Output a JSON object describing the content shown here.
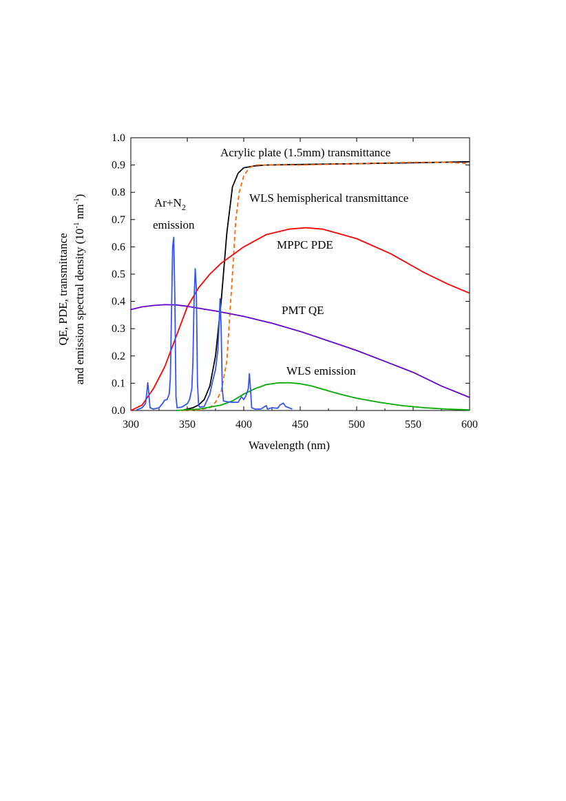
{
  "chart_data": {
    "type": "line",
    "title": "",
    "xlabel": "Wavelength (nm)",
    "ylabel_line1": "QE, PDE, transmittance",
    "ylabel_line2_prefix": "and emission spectral density (10",
    "ylabel_sup1": "-1",
    "ylabel_mid": " nm",
    "ylabel_sup2": "-1",
    "ylabel_suffix": ")",
    "xlim": [
      300,
      600
    ],
    "ylim": [
      0.0,
      1.0
    ],
    "xticks": [
      300,
      350,
      400,
      450,
      500,
      550,
      600
    ],
    "xtick_labels": [
      "300",
      "350",
      "400",
      "450",
      "500",
      "550",
      "600"
    ],
    "yticks": [
      0.0,
      0.1,
      0.2,
      0.3,
      0.4,
      0.5,
      0.6,
      0.7,
      0.8,
      0.9,
      1.0
    ],
    "ytick_labels": [
      "0.0",
      "0.1",
      "0.2",
      "0.3",
      "0.4",
      "0.5",
      "0.6",
      "0.7",
      "0.8",
      "0.9",
      "1.0"
    ],
    "grid": false,
    "series": [
      {
        "name": "Acrylic plate (1.5mm) transmittance",
        "color": "#000000",
        "dash": "solid",
        "x": [
          345,
          350,
          355,
          360,
          365,
          370,
          375,
          380,
          385,
          390,
          395,
          400,
          410,
          420,
          450,
          500,
          550,
          600
        ],
        "y": [
          0.0,
          0.005,
          0.01,
          0.02,
          0.04,
          0.09,
          0.2,
          0.4,
          0.65,
          0.82,
          0.87,
          0.89,
          0.897,
          0.9,
          0.902,
          0.905,
          0.908,
          0.912
        ]
      },
      {
        "name": "WLS hemispherical transmittance",
        "color": "#ff6600",
        "dash": "dashed",
        "x": [
          345,
          360,
          370,
          375,
          380,
          385,
          390,
          393,
          396,
          400,
          405,
          410,
          420,
          450,
          500,
          550,
          580,
          600
        ],
        "y": [
          0.0,
          0.002,
          0.01,
          0.03,
          0.07,
          0.18,
          0.5,
          0.7,
          0.8,
          0.86,
          0.89,
          0.9,
          0.9,
          0.9,
          0.905,
          0.91,
          0.91,
          0.905
        ]
      },
      {
        "name": "MPPC PDE",
        "color": "#ff0000",
        "dash": "solid",
        "x": [
          300,
          310,
          320,
          330,
          340,
          350,
          360,
          370,
          380,
          400,
          420,
          440,
          455,
          470,
          500,
          530,
          560,
          580,
          600
        ],
        "y": [
          0.0,
          0.02,
          0.08,
          0.16,
          0.27,
          0.38,
          0.45,
          0.5,
          0.54,
          0.6,
          0.645,
          0.665,
          0.67,
          0.665,
          0.63,
          0.575,
          0.505,
          0.465,
          0.43
        ]
      },
      {
        "name": "PMT QE",
        "color": "#6600cc",
        "dash": "solid",
        "x": [
          300,
          310,
          320,
          330,
          340,
          350,
          360,
          375,
          400,
          425,
          450,
          475,
          500,
          525,
          550,
          575,
          600
        ],
        "y": [
          0.37,
          0.38,
          0.385,
          0.388,
          0.387,
          0.382,
          0.375,
          0.365,
          0.345,
          0.32,
          0.29,
          0.255,
          0.22,
          0.18,
          0.14,
          0.09,
          0.048
        ]
      },
      {
        "name": "WLS emission",
        "color": "#00aa00",
        "dash": "solid",
        "x": [
          340,
          360,
          380,
          390,
          400,
          410,
          420,
          430,
          440,
          450,
          460,
          470,
          480,
          490,
          500,
          520,
          540,
          560,
          580,
          600
        ],
        "y": [
          0.0,
          0.005,
          0.02,
          0.035,
          0.06,
          0.08,
          0.095,
          0.101,
          0.102,
          0.098,
          0.09,
          0.078,
          0.066,
          0.055,
          0.045,
          0.03,
          0.018,
          0.01,
          0.005,
          0.002
        ]
      },
      {
        "name": "Ar+N2 emission",
        "color": "#3355ee",
        "dash": "solid",
        "x": [
          305,
          310,
          313,
          314,
          315,
          316,
          317,
          320,
          325,
          328,
          330,
          332,
          334,
          335,
          336,
          337,
          338,
          339,
          340,
          341,
          345,
          350,
          352,
          354,
          355,
          356,
          357,
          358,
          359,
          360,
          361,
          365,
          370,
          372,
          375,
          377,
          378,
          379,
          380,
          381,
          382,
          385,
          390,
          395,
          398,
          400,
          402,
          404,
          405,
          406,
          407,
          410,
          415,
          420,
          421,
          425,
          430,
          432,
          435,
          437,
          440,
          443
        ],
        "y": [
          0.002,
          0.01,
          0.025,
          0.06,
          0.102,
          0.06,
          0.01,
          0.005,
          0.01,
          0.025,
          0.038,
          0.04,
          0.06,
          0.12,
          0.35,
          0.6,
          0.635,
          0.4,
          0.05,
          0.01,
          0.012,
          0.025,
          0.04,
          0.08,
          0.18,
          0.4,
          0.52,
          0.45,
          0.1,
          0.02,
          0.012,
          0.015,
          0.06,
          0.1,
          0.15,
          0.22,
          0.3,
          0.41,
          0.3,
          0.08,
          0.035,
          0.032,
          0.03,
          0.03,
          0.05,
          0.04,
          0.055,
          0.08,
          0.135,
          0.08,
          0.01,
          0.005,
          0.005,
          0.018,
          0.005,
          0.01,
          0.008,
          0.02,
          0.027,
          0.015,
          0.01,
          0.005
        ]
      }
    ],
    "annotations": {
      "acrylic": "Acrylic plate (1.5mm) transmittance",
      "wls_trans": "WLS hemispherical transmittance",
      "argon_prefix": "Ar+N",
      "argon_sub": "2",
      "argon_line2": "emission",
      "mppc": "MPPC PDE",
      "pmt": "PMT QE",
      "wls_em": "WLS emission"
    }
  }
}
